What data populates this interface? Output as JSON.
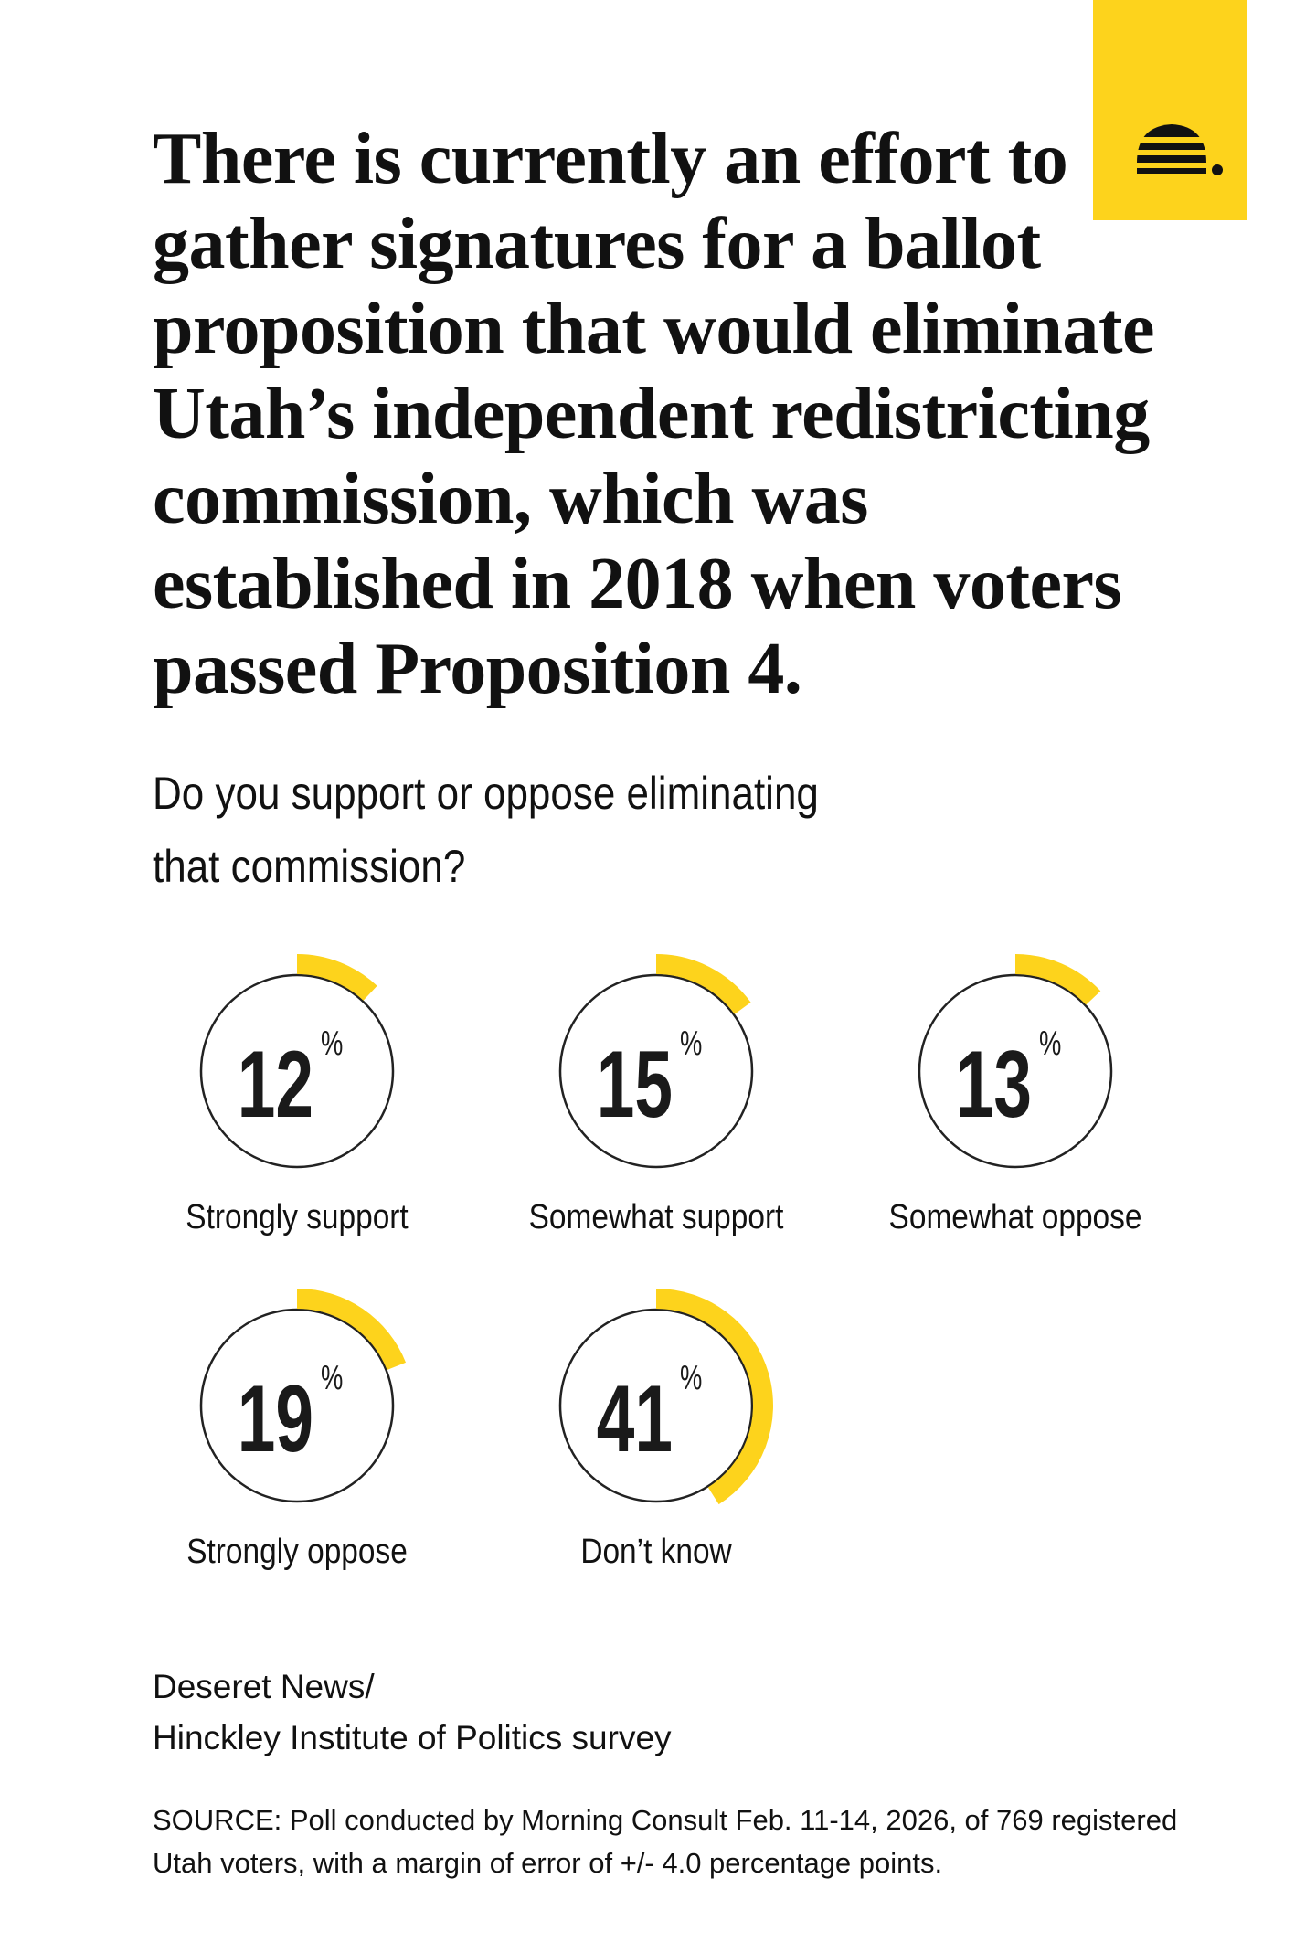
{
  "chart_data": {
    "type": "gauge",
    "title": "There is currently an effort to gather signatures for a ballot proposition that would eliminate Utah’s independent redistricting commission, which was established in 2018 when voters passed Proposition 4.",
    "subtitle": "Do you support or oppose eliminating that commission?",
    "categories": [
      "Strongly support",
      "Somewhat support",
      "Somewhat oppose",
      "Strongly oppose",
      "Don’t know"
    ],
    "values": [
      12,
      15,
      13,
      19,
      41
    ],
    "unit": "%",
    "ylim": [
      0,
      100
    ],
    "color": "#fdd31c",
    "source_lines": [
      "Deseret News/",
      "Hinckley Institute of Politics survey"
    ],
    "note": "SOURCE: Poll conducted by Morning Consult Feb. 11-14, 2026, of 769 registered Utah voters, with a margin of error of +/- 4.0 percentage points."
  }
}
